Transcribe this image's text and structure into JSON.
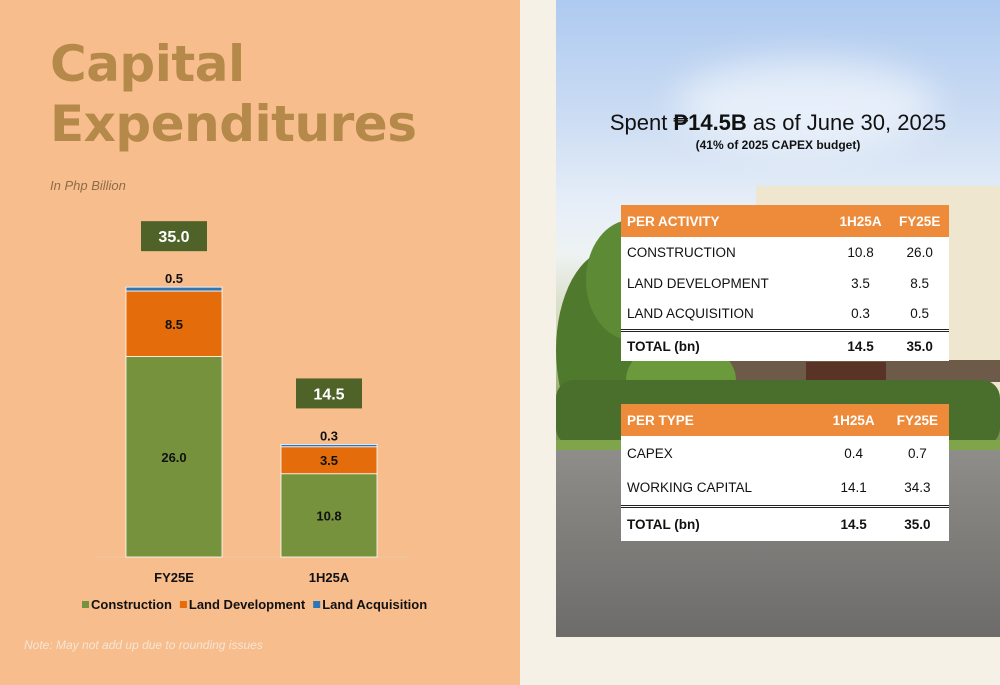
{
  "page": {
    "title_line1": "Capital",
    "title_line2": "Expenditures",
    "subtitle": "In Php Billion",
    "note": "Note: May not add up due to rounding issues"
  },
  "colors": {
    "construction": "#76923c",
    "land_development": "#e46c0a",
    "land_acquisition": "#2e75b6",
    "total_box": "#4f6228",
    "table_header": "#ee8b3a"
  },
  "chart_data": {
    "type": "bar",
    "stacked": true,
    "categories": [
      "FY25E",
      "1H25A"
    ],
    "series": [
      {
        "name": "Construction",
        "values": [
          26.0,
          10.8
        ],
        "labels": [
          "26.0",
          "10.8"
        ]
      },
      {
        "name": "Land Development",
        "values": [
          8.5,
          3.5
        ],
        "labels": [
          "8.5",
          "3.5"
        ]
      },
      {
        "name": "Land Acquisition",
        "values": [
          0.5,
          0.3
        ],
        "labels": [
          "0.5",
          "0.3"
        ]
      }
    ],
    "totals": [
      35.0,
      14.5
    ],
    "total_labels": [
      "35.0",
      "14.5"
    ],
    "legend_position": "bottom",
    "ylim": [
      0,
      35
    ]
  },
  "headline": {
    "prefix": "Spent ",
    "amount": "₱14.5B",
    "suffix": " as of June 30, 2025",
    "sub": "(41% of 2025 CAPEX budget)"
  },
  "activity_table": {
    "headers": [
      "PER ACTIVITY",
      "1H25A",
      "FY25E"
    ],
    "rows": [
      [
        "CONSTRUCTION",
        "10.8",
        "26.0"
      ],
      [
        "LAND DEVELOPMENT",
        "3.5",
        "8.5"
      ],
      [
        "LAND ACQUISITION",
        "0.3",
        "0.5"
      ]
    ],
    "total": [
      "TOTAL (bn)",
      "14.5",
      "35.0"
    ]
  },
  "type_table": {
    "headers": [
      "PER TYPE",
      "1H25A",
      "FY25E"
    ],
    "rows": [
      [
        "CAPEX",
        "0.4",
        "0.7"
      ],
      [
        "WORKING CAPITAL",
        "14.1",
        "34.3"
      ]
    ],
    "total": [
      "TOTAL (bn)",
      "14.5",
      "35.0"
    ]
  }
}
